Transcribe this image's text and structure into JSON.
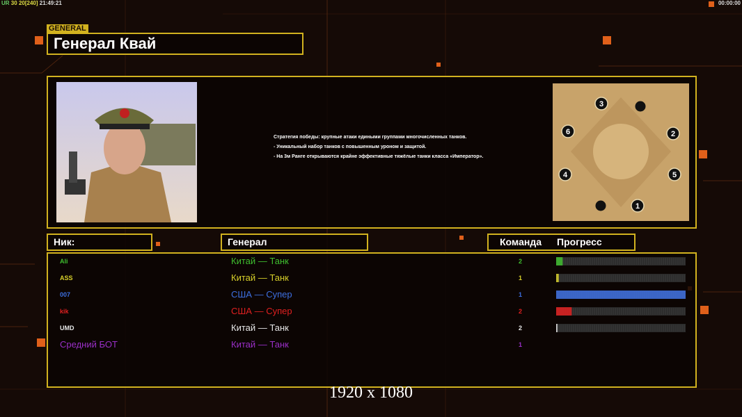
{
  "hud": {
    "left": [
      "UR",
      "30",
      "20[240]",
      "21:49:21"
    ],
    "right": "00:00:00"
  },
  "general": {
    "tag": "GENERAL",
    "name": "Генерал Квай",
    "description": [
      "Стратегия победы: крупные атаки едиными группами многочисленных танков.",
      "- Уникальный набор танков с повышенным уроном и защитой.",
      "- На 3м Ранге открываются крайне эффективные тяжёлые танки класса «Император»."
    ]
  },
  "map": {
    "start_positions": [
      1,
      2,
      3,
      4,
      5,
      6
    ]
  },
  "table": {
    "headers": [
      "Ник:",
      "Генерал",
      "Команда",
      "Прогресс"
    ],
    "rows": [
      {
        "nick": "Ali",
        "general": "Китай — Танк",
        "team": 2,
        "progress": 5,
        "color": "#3fbf2f"
      },
      {
        "nick": "ASS",
        "general": "Китай — Танк",
        "team": 1,
        "progress": 2,
        "color": "#d8d02a"
      },
      {
        "nick": "007",
        "general": "США — Супер",
        "team": 1,
        "progress": 100,
        "color": "#3d6fe0"
      },
      {
        "nick": "kik",
        "general": "США — Супер",
        "team": 2,
        "progress": 12,
        "color": "#e02020"
      },
      {
        "nick": "UMD",
        "general": "Китай — Танк",
        "team": 2,
        "progress": 1,
        "color": "#e8e8e8"
      },
      {
        "nick": "Средний БОТ",
        "general": "Китай — Танк",
        "team": 1,
        "progress": null,
        "color": "#9a2fc8"
      }
    ]
  },
  "footer": "1920 x 1080"
}
